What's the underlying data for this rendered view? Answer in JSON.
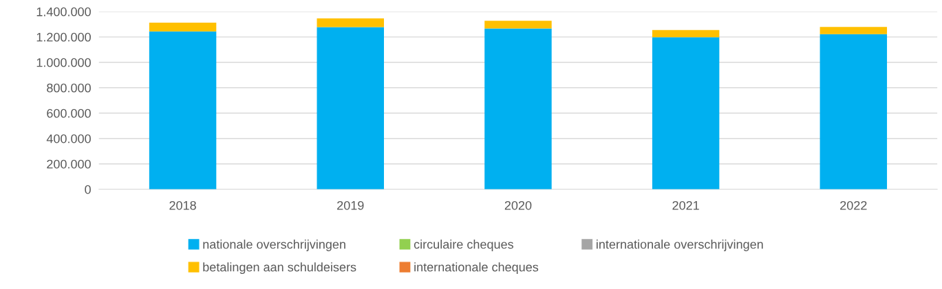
{
  "chart_data": {
    "type": "bar",
    "stacked": true,
    "categories": [
      "2018",
      "2019",
      "2020",
      "2021",
      "2022"
    ],
    "series": [
      {
        "name": "nationale overschrijvingen",
        "color": "#00b0f0",
        "values": [
          1244000,
          1278000,
          1267000,
          1198000,
          1222000
        ]
      },
      {
        "name": "betalingen aan schuldeisers",
        "color": "#ffc000",
        "values": [
          69000,
          68000,
          61000,
          57000,
          57000
        ]
      },
      {
        "name": "circulaire cheques",
        "color": "#92d050",
        "values": [
          0,
          0,
          0,
          0,
          0
        ]
      },
      {
        "name": "internationale cheques",
        "color": "#ed7d31",
        "values": [
          0,
          0,
          0,
          0,
          0
        ]
      },
      {
        "name": "internationale overschrijvingen",
        "color": "#a5a5a5",
        "values": [
          0,
          0,
          0,
          0,
          0
        ]
      }
    ],
    "ylim": [
      0,
      1400000
    ],
    "yticks": [
      {
        "value": 0,
        "label": "0"
      },
      {
        "value": 200000,
        "label": "200.000"
      },
      {
        "value": 400000,
        "label": "400.000"
      },
      {
        "value": 600000,
        "label": "600.000"
      },
      {
        "value": 800000,
        "label": "800.000"
      },
      {
        "value": 1000000,
        "label": "1.000.000"
      },
      {
        "value": 1200000,
        "label": "1.200.000"
      },
      {
        "value": 1400000,
        "label": "1.400.000"
      }
    ],
    "grid": "y",
    "legend": "bottom"
  }
}
